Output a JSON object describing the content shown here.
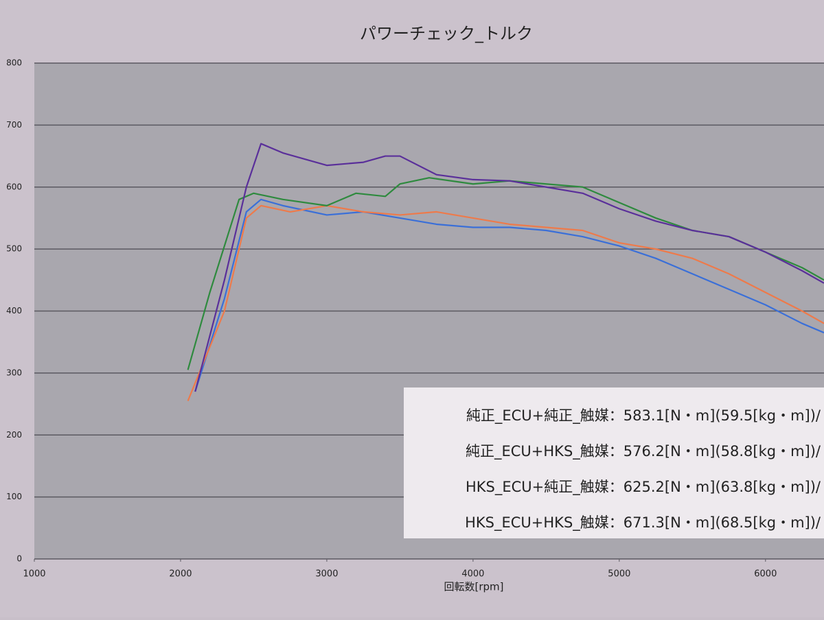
{
  "chart_data": {
    "type": "line",
    "title": "パワーチェック_トルク",
    "xlabel": "回転数[rpm]",
    "xlim": [
      1000,
      6400
    ],
    "xticks": [
      1000,
      2000,
      3000,
      4000,
      5000,
      6000
    ],
    "ylim": [
      0,
      800
    ],
    "yticks": [
      0,
      100,
      200,
      300,
      400,
      500,
      600,
      700,
      800
    ],
    "grid": true,
    "series": [
      {
        "name": "純正_ECU+純正_触媒：583.1[N・m](59.5[kg・m])/",
        "color": "#3a6fd8",
        "x": [
          2100,
          2300,
          2450,
          2550,
          2700,
          3000,
          3250,
          3500,
          3750,
          4000,
          4250,
          4500,
          4750,
          5000,
          5250,
          5500,
          5750,
          6000,
          6250,
          6400
        ],
        "values": [
          270,
          420,
          560,
          580,
          570,
          555,
          560,
          550,
          540,
          535,
          535,
          530,
          520,
          505,
          485,
          460,
          435,
          410,
          380,
          365
        ]
      },
      {
        "name": "純正_ECU+HKS_触媒：576.2[N・m](58.8[kg・m])/",
        "color": "#ee7a4a",
        "x": [
          2050,
          2300,
          2450,
          2550,
          2750,
          3000,
          3250,
          3500,
          3750,
          4000,
          4250,
          4500,
          4750,
          5000,
          5250,
          5500,
          5750,
          6000,
          6250,
          6400
        ],
        "values": [
          255,
          400,
          550,
          570,
          560,
          570,
          560,
          555,
          560,
          550,
          540,
          535,
          530,
          510,
          500,
          485,
          460,
          430,
          400,
          380
        ]
      },
      {
        "name": "HKS_ECU+純正_触媒：625.2[N・m](63.8[kg・m])/",
        "color": "#2e8a3e",
        "x": [
          2050,
          2200,
          2400,
          2500,
          2700,
          3000,
          3200,
          3400,
          3500,
          3700,
          4000,
          4250,
          4500,
          4750,
          5000,
          5250,
          5500,
          5750,
          6000,
          6250,
          6400
        ],
        "values": [
          305,
          430,
          580,
          590,
          580,
          570,
          590,
          585,
          605,
          615,
          605,
          610,
          605,
          600,
          575,
          550,
          530,
          520,
          495,
          470,
          450
        ]
      },
      {
        "name": "HKS_ECU+HKS_触媒：671.3[N・m](68.5[kg・m])/",
        "color": "#5a2f9a",
        "x": [
          2100,
          2300,
          2450,
          2550,
          2700,
          3000,
          3250,
          3400,
          3500,
          3750,
          4000,
          4250,
          4500,
          4750,
          5000,
          5250,
          5500,
          5750,
          6000,
          6250,
          6400
        ],
        "values": [
          270,
          450,
          600,
          670,
          655,
          635,
          640,
          650,
          650,
          620,
          612,
          610,
          600,
          590,
          565,
          545,
          530,
          520,
          495,
          465,
          445
        ]
      }
    ]
  }
}
